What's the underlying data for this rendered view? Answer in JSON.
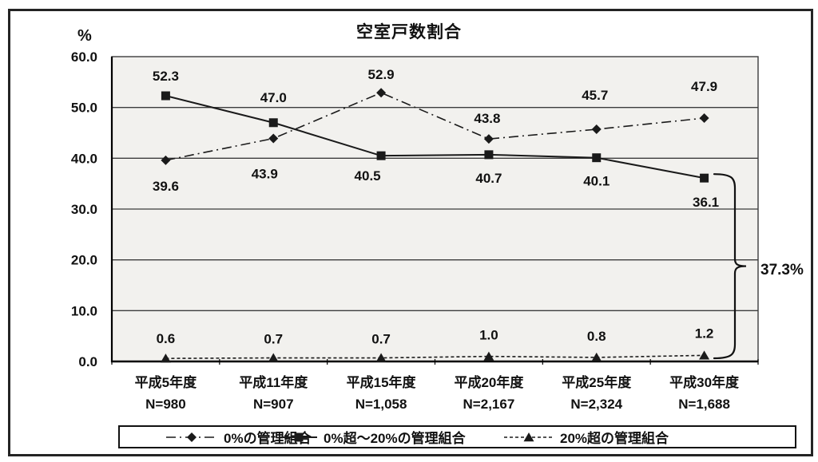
{
  "chart_data": {
    "type": "line",
    "title": "空室戸数割合",
    "y_unit_label": "%",
    "ylim": [
      0,
      60
    ],
    "ytick_step": 10,
    "ytick_labels": [
      "0.0",
      "10.0",
      "20.0",
      "30.0",
      "40.0",
      "50.0",
      "60.0"
    ],
    "grid": true,
    "legend_position": "bottom",
    "categories": [
      "平成5年度",
      "平成11年度",
      "平成15年度",
      "平成20年度",
      "平成25年度",
      "平成30年度"
    ],
    "category_sublabels": [
      "N=980",
      "N=907",
      "N=1,058",
      "N=2,167",
      "N=2,324",
      "N=1,688"
    ],
    "series": [
      {
        "name": "0%の管理組合",
        "marker": "diamond",
        "line_style": "dashdot",
        "color": "#1a1a1a",
        "values": [
          39.6,
          43.9,
          52.9,
          43.8,
          45.7,
          47.9
        ],
        "value_labels": [
          "39.6",
          "43.9",
          "52.9",
          "43.8",
          "45.7",
          "47.9"
        ],
        "label_dy": [
          32,
          44,
          -23,
          -26,
          -43,
          -40
        ],
        "label_dx": [
          0,
          -11,
          0,
          -2,
          -2,
          0
        ]
      },
      {
        "name": "0%超～20%の管理組合",
        "marker": "square",
        "line_style": "solid",
        "color": "#1a1a1a",
        "values": [
          52.3,
          47.0,
          40.5,
          40.7,
          40.1,
          36.1
        ],
        "value_labels": [
          "52.3",
          "47.0",
          "40.5",
          "40.7",
          "40.1",
          "36.1"
        ],
        "label_dy": [
          -25,
          -32,
          25,
          29,
          29,
          30
        ],
        "label_dx": [
          0,
          0,
          -17,
          0,
          0,
          2
        ]
      },
      {
        "name": "20%超の管理組合",
        "marker": "triangle",
        "line_style": "dashed",
        "color": "#1a1a1a",
        "values": [
          0.6,
          0.7,
          0.7,
          1.0,
          0.8,
          1.2
        ],
        "value_labels": [
          "0.6",
          "0.7",
          "0.7",
          "1.0",
          "0.8",
          "1.2"
        ],
        "label_dy": [
          -25,
          -24,
          -24,
          -27,
          -27,
          -28
        ],
        "label_dx": [
          0,
          0,
          0,
          0,
          0,
          0
        ]
      }
    ],
    "annotation": {
      "text": "37.3%",
      "brace_from_value": 36.1,
      "brace_to_value": 1.2,
      "at_category": "平成30年度"
    }
  }
}
